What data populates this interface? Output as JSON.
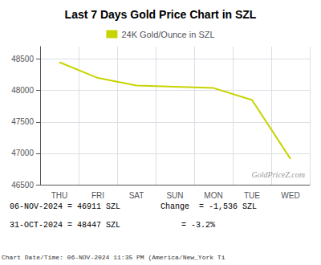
{
  "chart_data": {
    "type": "line",
    "title": "Last 7 Days Gold Price Chart in SZL",
    "categories": [
      "THU",
      "FRI",
      "SAT",
      "SUN",
      "MON",
      "TUE",
      "WED"
    ],
    "series": [
      {
        "name": "24K Gold/Ounce in SZL",
        "color": "#c8d400",
        "values": [
          48450,
          48200,
          48080,
          48060,
          48040,
          47850,
          46911
        ]
      }
    ],
    "ylim": [
      46500,
      48700
    ],
    "yticks": [
      46500,
      47000,
      47500,
      48000,
      48500
    ],
    "grid": true,
    "legend": "top",
    "annotations": [
      "06-NOV-2024 = 46911 SZL",
      "31-OCT-2024 = 48447 SZL",
      "Change  = -1,536 SZL",
      "= -3.2%"
    ],
    "watermark": "GoldPriceZ.com",
    "footer": "Chart Date/Time: 06-NOV-2024 11:35 PM (America/New_York Ti"
  }
}
